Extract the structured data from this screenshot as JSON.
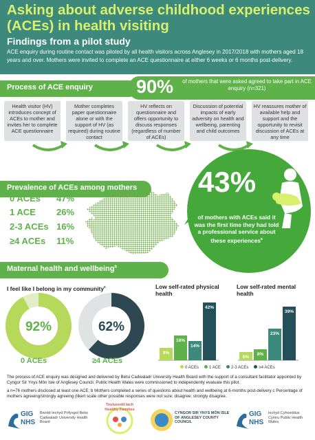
{
  "header": {
    "title_line1": "Asking about adverse childhood experiences",
    "title_line2": "(ACEs) in health visiting",
    "subtitle": "Findings from a pilot study",
    "intro": "ACE enquiry during routine contact was piloted by all health visitors across Anglesey in 2017/2018 with mothers aged 18 years and over. Mothers were invited to complete an ACE questionnaire at either 6 weeks or 6 months post-delivery."
  },
  "process": {
    "label": "Process of ACE enquiry",
    "agree_pct": "90%",
    "agree_text": "of mothers that were asked agreed to take part in ACE enquiry (n=321)",
    "steps": [
      "Health visitor (HV) introduces concept of ACEs to mother and invites her to complete ACE questionnaire",
      "Mother completes paper questionnaire alone or with the support of HV (as required) during routine contact",
      "HV reflects on questionnaire and offers opportunity to discuss responses (regardless of number of ACEs)",
      "Discussion of potential impacts of early adversity on health and wellbeing, parenting and child outcomes",
      "HV reassures mother of available help and support and the opportunity to revisit discussion of ACEs at any time"
    ]
  },
  "prevalence": {
    "label": "Prevalence of ACEs among mothers",
    "rows": [
      {
        "label": "0 ACEs",
        "pct": "47%"
      },
      {
        "label": "1 ACE",
        "pct": "26%"
      },
      {
        "label": "2-3 ACEs",
        "pct": "16%"
      },
      {
        "label": "≥4 ACEs",
        "pct": "11%"
      }
    ],
    "big_pct": "43%",
    "big_text": "of mothers with ACEs said it was the first time they had told a professional service about these experiences",
    "big_mark": "a"
  },
  "maternal": {
    "label": "Maternal health and wellbeing",
    "label_mark": "b",
    "belong_title": "I feel like I belong in my community",
    "belong_mark": "c",
    "donut1": {
      "pct": "92%",
      "value": 92,
      "label": "0 ACEs"
    },
    "donut2": {
      "pct": "62%",
      "value": 62,
      "label": "≥4 ACEs"
    },
    "physical_title": "Low self-rated physical health",
    "mental_title": "Low self-rated mental health",
    "physical_values": [
      9,
      18,
      14,
      42
    ],
    "mental_values": [
      6,
      8,
      23,
      39
    ],
    "legend": [
      "0 ACEs",
      "1 ACE",
      "2-3 ACEs",
      "≥4 ACEs"
    ]
  },
  "colors": {
    "header_bg": "#3d8a7c",
    "title": "#d9ef6e",
    "green": "#5fb14a",
    "bar_colors": [
      "#b7d95b",
      "#5fb14a",
      "#3d8a7c",
      "#24505a"
    ],
    "dark": "#2d4851",
    "light_green": "#b7d95b"
  },
  "footer": {
    "text1": "The process of ACE enquiry was designed and delivered by Betsi Cadwaladr University Health Board with the support of a consultant facilitator appointed by Cyngor Sir Ynys Môn Isle of Anglesey Council. Public Health Wales were commissioned to independently evaluate this pilot.",
    "text2": "a n=76 mothers disclosed at least one ACE; b Mothers completed a series of questions about health and wellbeing at 6-months post-delivery c Percentage of mothers agreeing/strongly agreeing (likert scale other possible responses were not sure; disagree; strongly disagree.",
    "logo1": "Bwrdd Iechyd Prifysgol Betsi Cadwaladr University Health Board",
    "logo2": "Teuluoedd Iach Healthy Families",
    "logo3": "CYNGOR SIR YNYS MÔN ISLE OF ANGLESEY COUNTY COUNCIL",
    "logo4": "Iechyd Cyhoeddus Cymru Public Health Wales",
    "gig": "GIG",
    "nhs": "NHS"
  }
}
